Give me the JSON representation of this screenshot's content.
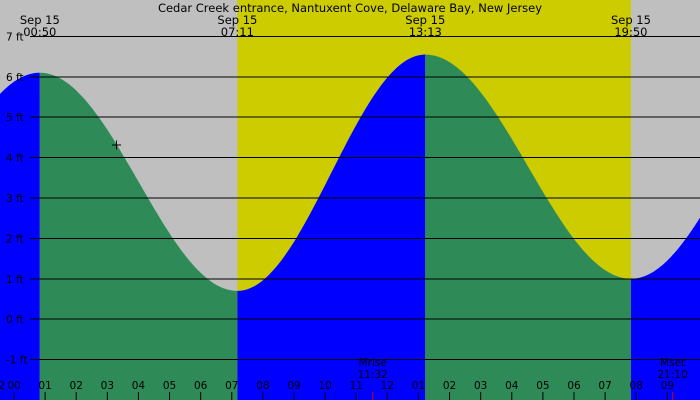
{
  "chart_data": {
    "type": "area",
    "title": "Cedar Creek entrance, Nantuxent Cove, Delaware Bay, New Jersey",
    "xlabel": "",
    "ylabel": "",
    "x_range_hours": [
      -0.45,
      22.05
    ],
    "ylim": [
      -2.0,
      7.9
    ],
    "y_ticks": [
      {
        "value": 7,
        "label": "7 ft"
      },
      {
        "value": 6,
        "label": "6 ft"
      },
      {
        "value": 5,
        "label": "5 ft"
      },
      {
        "value": 4,
        "label": "4 ft"
      },
      {
        "value": 3,
        "label": "3 ft"
      },
      {
        "value": 2,
        "label": "2 ft"
      },
      {
        "value": 1,
        "label": "1 ft"
      },
      {
        "value": 0,
        "label": "0 ft"
      },
      {
        "value": -1,
        "label": "-1 ft"
      }
    ],
    "x_ticks": [
      {
        "hour": 0.0,
        "label": "00"
      },
      {
        "hour": 1.0,
        "label": "01"
      },
      {
        "hour": 2.0,
        "label": "02"
      },
      {
        "hour": 3.0,
        "label": "03"
      },
      {
        "hour": 4.0,
        "label": "04"
      },
      {
        "hour": 5.0,
        "label": "05"
      },
      {
        "hour": 6.0,
        "label": "06"
      },
      {
        "hour": 7.0,
        "label": "07"
      },
      {
        "hour": 8.0,
        "label": "08"
      },
      {
        "hour": 9.0,
        "label": "09"
      },
      {
        "hour": 10.0,
        "label": "10"
      },
      {
        "hour": 11.0,
        "label": "11"
      },
      {
        "hour": 12.0,
        "label": "12"
      },
      {
        "hour": 13.0,
        "label": "01"
      },
      {
        "hour": 14.0,
        "label": "02"
      },
      {
        "hour": 15.0,
        "label": "03"
      },
      {
        "hour": 16.0,
        "label": "04"
      },
      {
        "hour": 17.0,
        "label": "05"
      },
      {
        "hour": 18.0,
        "label": "06"
      },
      {
        "hour": 19.0,
        "label": "07"
      },
      {
        "hour": 20.0,
        "label": "08"
      },
      {
        "hour": 21.0,
        "label": "09"
      }
    ],
    "x_ticks_partial": [
      {
        "hour": -1.0,
        "label": "11"
      },
      {
        "hour": -0.5,
        "label": "12"
      }
    ],
    "daylight": {
      "start_hour": 7.18,
      "end_hour": 19.83
    },
    "extremes": [
      {
        "hour": 0.83,
        "value": 6.1,
        "kind": "high",
        "date": "Sep 15",
        "time": "00:50"
      },
      {
        "hour": 7.18,
        "value": 0.7,
        "kind": "low",
        "date": "Sep 15",
        "time": "07:11"
      },
      {
        "hour": 13.22,
        "value": 6.55,
        "kind": "high",
        "date": "Sep 15",
        "time": "13:13"
      },
      {
        "hour": 19.83,
        "value": 1.0,
        "kind": "low",
        "date": "Sep 15",
        "time": "19:50"
      }
    ],
    "moon_events": [
      {
        "hour": 11.53,
        "label": "Mrise",
        "time": "11:32"
      },
      {
        "hour": 21.17,
        "label": "Mset",
        "time": "21:10"
      }
    ],
    "colors": {
      "background": "#bfbfbf",
      "daylight": "#cccc00",
      "rising": "#0000ff",
      "falling": "#2e8b57",
      "grid": "#000000",
      "text": "#000000",
      "moon_tick": "#cc0000"
    }
  }
}
